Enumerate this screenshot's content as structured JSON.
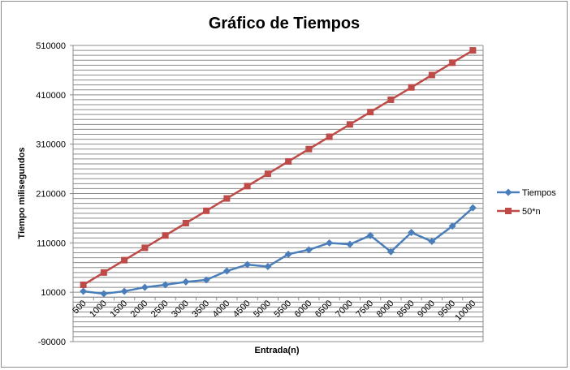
{
  "chart_data": {
    "type": "line",
    "title": "Gráfico de Tiempos",
    "xlabel": "Entrada(n)",
    "ylabel": "Tiempo milisegundos",
    "categories": [
      "500",
      "1000",
      "1500",
      "2000",
      "2500",
      "3000",
      "3500",
      "4000",
      "4500",
      "5000",
      "5500",
      "6000",
      "6500",
      "7000",
      "7500",
      "8000",
      "8500",
      "9000",
      "9500",
      "10000"
    ],
    "y_ticks": [
      "-90000",
      "10000",
      "110000",
      "210000",
      "310000",
      "410000",
      "510000"
    ],
    "ylim": [
      -90000,
      510000
    ],
    "grid": true,
    "legend_position": "right",
    "series": [
      {
        "name": "Tiempos",
        "color": "#4a7ebb",
        "marker": "diamond",
        "values": [
          12000,
          7000,
          12000,
          20000,
          25000,
          31000,
          35000,
          53000,
          66000,
          62000,
          87000,
          96000,
          110000,
          107000,
          125000,
          92000,
          131000,
          113000,
          144000,
          181000
        ]
      },
      {
        "name": "50*n",
        "color": "#be4b48",
        "marker": "square",
        "values": [
          25000,
          50000,
          75000,
          100000,
          125000,
          150000,
          175000,
          200000,
          225000,
          250000,
          275000,
          300000,
          325000,
          350000,
          375000,
          400000,
          425000,
          450000,
          475000,
          500000
        ]
      }
    ]
  }
}
